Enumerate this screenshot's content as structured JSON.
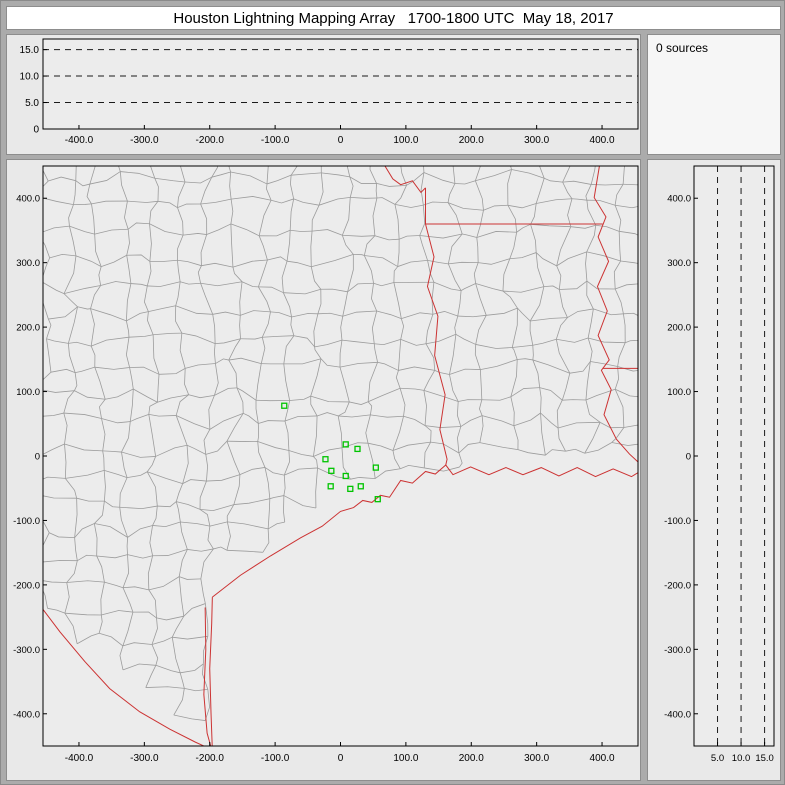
{
  "window": {
    "title": "Houston Lightning Mapping Array   1700-1800 UTC  May 18, 2017"
  },
  "sources_panel": {
    "label": "0 sources"
  },
  "colors": {
    "window_bg": "#ababab",
    "panel_bg": "#e9e9e9",
    "plot_bg": "#ececec",
    "frame": "#000000",
    "grid_dash": "#1a1a1a",
    "county_line": "#9c9c9c",
    "state_border": "#cc3333",
    "station_marker": "#00c400",
    "title_bg": "#ffffff",
    "sources_bg": "#f6f6f6",
    "text": "#000000"
  },
  "chart_data": [
    {
      "id": "altitude_ew",
      "type": "scatter",
      "panel": "top",
      "title": "",
      "xlabel": "",
      "ylabel": "",
      "xlim": [
        -455,
        455
      ],
      "ylim": [
        0,
        17
      ],
      "xticks": [
        -400,
        -300,
        -200,
        -100,
        0,
        100,
        200,
        300,
        400
      ],
      "xtick_labels": [
        "-400.0",
        "-300.0",
        "-200.0",
        "-100.0",
        "0",
        "100.0",
        "200.0",
        "300.0",
        "400.0"
      ],
      "yticks": [
        0,
        5,
        10,
        15
      ],
      "ytick_labels": [
        "0",
        "5.0",
        "10.0",
        "15.0"
      ],
      "grid_y": [
        5,
        10,
        15
      ],
      "points": [],
      "source_count": 0
    },
    {
      "id": "map",
      "type": "scatter",
      "panel": "main",
      "title": "",
      "xlabel": "",
      "ylabel": "",
      "xlim": [
        -455,
        455
      ],
      "ylim": [
        -450,
        450
      ],
      "xticks": [
        -400,
        -300,
        -200,
        -100,
        0,
        100,
        200,
        300,
        400
      ],
      "xtick_labels": [
        "-400.0",
        "-300.0",
        "-200.0",
        "-100.0",
        "0",
        "100.0",
        "200.0",
        "300.0",
        "400.0"
      ],
      "yticks": [
        400,
        300,
        200,
        100,
        0,
        -100,
        -200,
        -300,
        -400
      ],
      "ytick_labels": [
        "400.0",
        "300.0",
        "200.0",
        "100.0",
        "0",
        "-100.0",
        "-200.0",
        "-300.0",
        "-400.0"
      ],
      "stations": [
        [
          -86,
          78
        ],
        [
          8,
          18
        ],
        [
          26,
          11
        ],
        [
          -23,
          -5
        ],
        [
          -14,
          -23
        ],
        [
          8,
          -31
        ],
        [
          -15,
          -47
        ],
        [
          15,
          -51
        ],
        [
          54,
          -18
        ],
        [
          31,
          -47
        ],
        [
          57,
          -67
        ]
      ],
      "counties": {
        "cell_km": 42,
        "jitter_km": 13
      },
      "features": {
        "rio_grande": [
          [
            -455,
            -238
          ],
          [
            -429,
            -273
          ],
          [
            -391,
            -319
          ],
          [
            -353,
            -361
          ],
          [
            -307,
            -397
          ],
          [
            -261,
            -424
          ],
          [
            -222,
            -444
          ],
          [
            -196,
            -456
          ]
        ],
        "barrier_island": [
          [
            -196,
            -456
          ],
          [
            -198,
            -400
          ],
          [
            -200,
            -330
          ],
          [
            -197,
            -260
          ],
          [
            -196,
            -219
          ]
        ],
        "lagoon_shore": [
          [
            -207,
            -235
          ],
          [
            -206,
            -300
          ],
          [
            -209,
            -370
          ],
          [
            -204,
            -430
          ],
          [
            -198,
            -452
          ]
        ],
        "coastline": [
          [
            -196,
            -219
          ],
          [
            -153,
            -185
          ],
          [
            -107,
            -155
          ],
          [
            -61,
            -127
          ],
          [
            -28,
            -109
          ],
          [
            0,
            -86
          ],
          [
            20,
            -80
          ],
          [
            34,
            -69
          ],
          [
            48,
            -72
          ],
          [
            61,
            -61
          ],
          [
            75,
            -64
          ],
          [
            92,
            -38
          ],
          [
            110,
            -42
          ],
          [
            130,
            -24
          ],
          [
            145,
            -28
          ],
          [
            161,
            -14
          ],
          [
            172,
            -29
          ],
          [
            199,
            -17
          ],
          [
            227,
            -29
          ],
          [
            253,
            -18
          ],
          [
            279,
            -29
          ],
          [
            307,
            -18
          ],
          [
            334,
            -31
          ],
          [
            362,
            -18
          ],
          [
            390,
            -32
          ],
          [
            417,
            -20
          ],
          [
            445,
            -32
          ],
          [
            458,
            -24
          ]
        ],
        "red_river": [
          [
            68,
            450
          ],
          [
            80,
            430
          ],
          [
            92,
            421
          ],
          [
            110,
            427
          ],
          [
            123,
            409
          ],
          [
            130,
            416
          ]
        ],
        "tx_ar_border": [
          [
            130,
            416
          ],
          [
            130,
            360
          ]
        ],
        "ar_la_border": [
          [
            130,
            360
          ],
          [
            401,
            360
          ]
        ],
        "sabine_river": [
          [
            130,
            360
          ],
          [
            143,
            309
          ],
          [
            133,
            263
          ],
          [
            149,
            217
          ],
          [
            144,
            156
          ],
          [
            160,
            95
          ],
          [
            152,
            41
          ],
          [
            163,
            -5
          ],
          [
            161,
            -14
          ]
        ],
        "mississippi_river": [
          [
            396,
            450
          ],
          [
            388,
            401
          ],
          [
            406,
            371
          ],
          [
            394,
            340
          ],
          [
            410,
            302
          ],
          [
            393,
            263
          ],
          [
            408,
            225
          ],
          [
            394,
            187
          ],
          [
            411,
            149
          ],
          [
            399,
            133
          ],
          [
            414,
            103
          ],
          [
            403,
            64
          ],
          [
            422,
            26
          ],
          [
            442,
            3
          ],
          [
            458,
            -12
          ]
        ],
        "la_ms_border": [
          [
            401,
            136
          ],
          [
            460,
            136
          ]
        ]
      }
    },
    {
      "id": "altitude_ns",
      "type": "scatter",
      "panel": "right",
      "title": "",
      "xlabel": "",
      "ylabel": "",
      "xlim": [
        0,
        17
      ],
      "ylim": [
        -450,
        450
      ],
      "xticks": [
        5,
        10,
        15
      ],
      "xtick_labels": [
        "5.0",
        "10.0",
        "15.0"
      ],
      "yticks": [
        400,
        300,
        200,
        100,
        0,
        -100,
        -200,
        -300,
        -400
      ],
      "ytick_labels": [
        "400.0",
        "300.0",
        "200.0",
        "100.0",
        "0",
        "-100.0",
        "-200.0",
        "-300.0",
        "-400.0"
      ],
      "grid_x": [
        5,
        10,
        15
      ],
      "points": [],
      "source_count": 0
    }
  ]
}
